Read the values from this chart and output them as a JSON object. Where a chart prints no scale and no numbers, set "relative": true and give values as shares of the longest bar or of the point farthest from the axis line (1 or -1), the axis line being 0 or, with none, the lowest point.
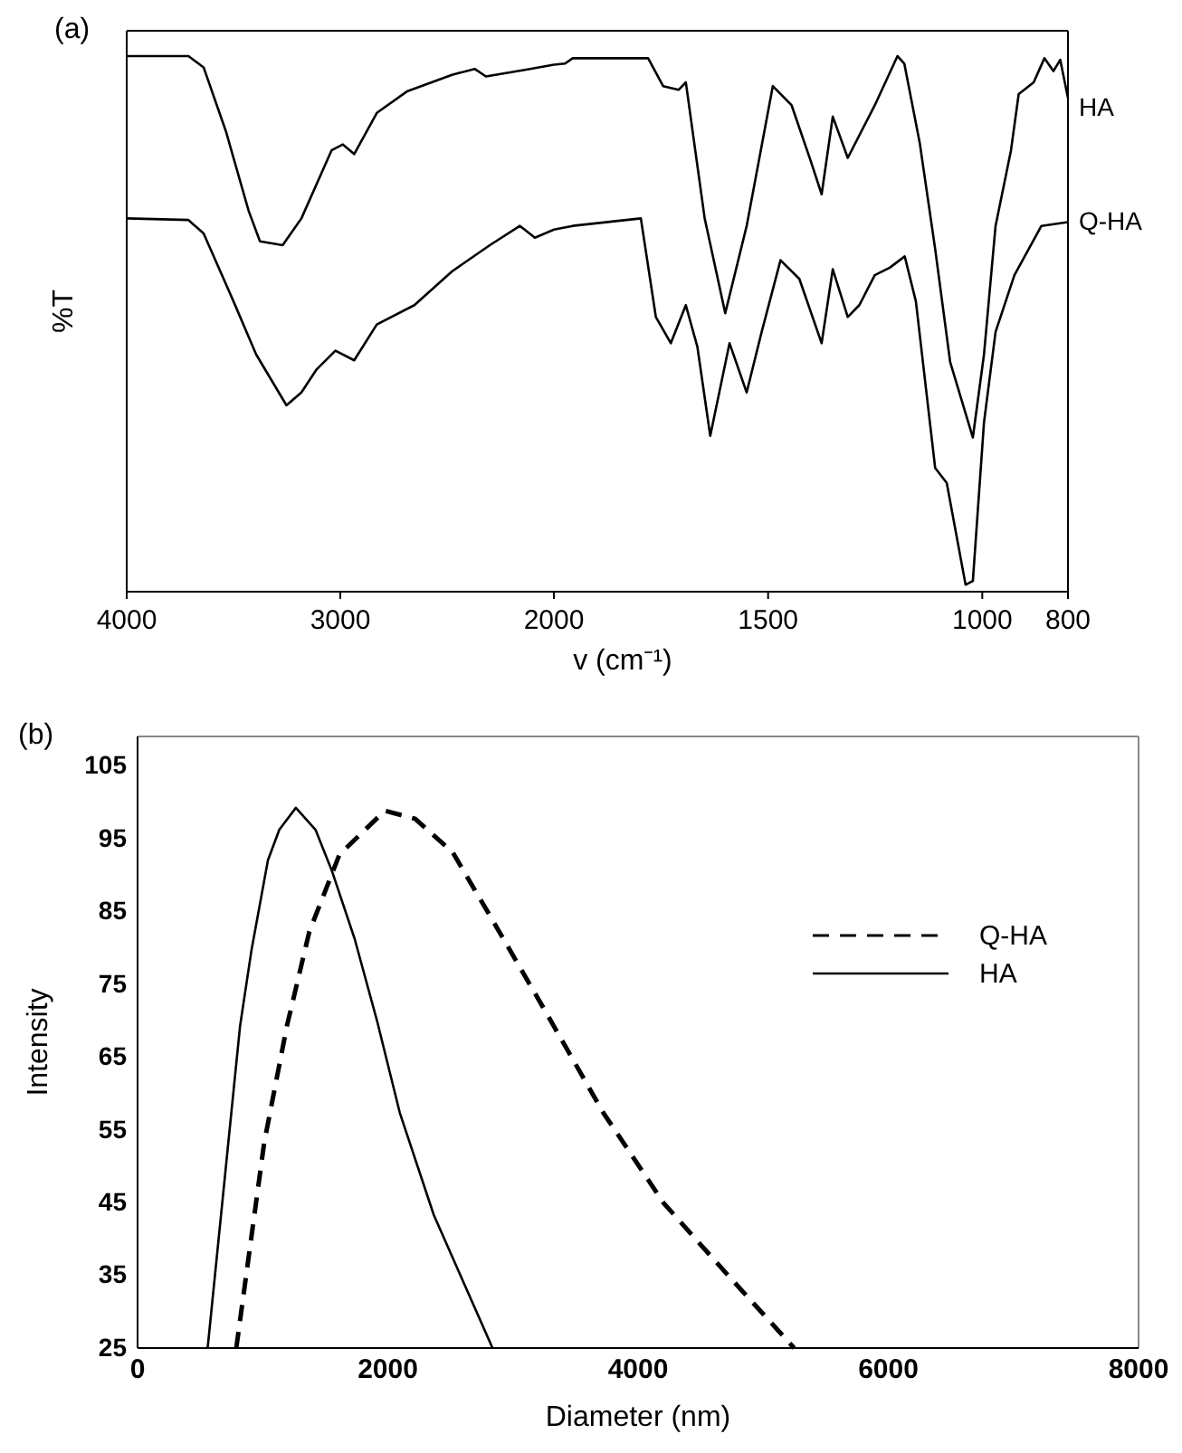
{
  "chart_data": [
    {
      "type": "line",
      "relative": true,
      "ylabel": "%T",
      "annotations": [
        "(a)"
      ],
      "xlim": [
        4000,
        2000
      ],
      "xticks": [
        4000,
        3000,
        {
          "value": 2000,
          "label": null
        }
      ],
      "series": [
        {
          "color": "#000000",
          "x": [
            4000,
            3711,
            3640,
            3535,
            3429,
            3376,
            3270,
            3182,
            3041,
            2988,
            2935,
            2829,
            2688,
            2477,
            2371,
            2318,
            2124,
            2000
          ],
          "values": [
            1.0,
            1.0,
            0.979,
            0.859,
            0.711,
            0.654,
            0.647,
            0.697,
            0.824,
            0.835,
            0.817,
            0.894,
            0.934,
            0.965,
            0.976,
            0.962,
            0.975,
            0.984
          ]
        },
        {
          "color": "#000000",
          "x": [
            4000,
            3711,
            3640,
            3500,
            3394,
            3252,
            3182,
            3111,
            3023,
            2935,
            2829,
            2653,
            2477,
            2300,
            2159,
            2089,
            2000
          ],
          "values": [
            0.697,
            0.694,
            0.669,
            0.542,
            0.443,
            0.348,
            0.372,
            0.415,
            0.45,
            0.432,
            0.499,
            0.535,
            0.598,
            0.647,
            0.683,
            0.661,
            0.676
          ]
        }
      ]
    },
    {
      "type": "line",
      "relative": true,
      "xlabel": "v (cm⁻¹)",
      "xlim": [
        2000,
        800
      ],
      "xticks": [
        2000,
        1500,
        1000,
        800
      ],
      "series": [
        {
          "name": "HA",
          "color": "#000000",
          "x": [
            2000,
            1974,
            1956,
            1780,
            1745,
            1709,
            1692,
            1648,
            1600,
            1550,
            1489,
            1445,
            1400,
            1375,
            1349,
            1314,
            1251,
            1198,
            1182,
            1146,
            1110,
            1075,
            1022,
            996,
            969,
            933,
            915,
            880,
            855,
            834,
            818,
            800
          ],
          "values": [
            0.984,
            0.986,
            0.996,
            0.996,
            0.944,
            0.937,
            0.951,
            0.697,
            0.52,
            0.683,
            0.944,
            0.908,
            0.803,
            0.742,
            0.887,
            0.81,
            0.908,
            1.0,
            0.986,
            0.838,
            0.64,
            0.429,
            0.288,
            0.443,
            0.683,
            0.824,
            0.929,
            0.951,
            0.996,
            0.972,
            0.993,
            0.922
          ]
        },
        {
          "name": "Q-HA",
          "color": "#000000",
          "x": [
            2000,
            1956,
            1797,
            1762,
            1727,
            1692,
            1665,
            1635,
            1590,
            1550,
            1515,
            1471,
            1427,
            1375,
            1349,
            1314,
            1287,
            1251,
            1216,
            1181,
            1155,
            1110,
            1083,
            1039,
            1022,
            996,
            969,
            925,
            862,
            800
          ],
          "values": [
            0.676,
            0.683,
            0.697,
            0.513,
            0.464,
            0.535,
            0.457,
            0.291,
            0.464,
            0.372,
            0.485,
            0.619,
            0.584,
            0.464,
            0.602,
            0.513,
            0.535,
            0.591,
            0.605,
            0.626,
            0.542,
            0.231,
            0.203,
            0.013,
            0.02,
            0.316,
            0.485,
            0.591,
            0.683,
            0.69
          ]
        }
      ]
    },
    {
      "type": "line",
      "xlabel": "Diameter (nm)",
      "ylabel": "Intensity",
      "annotations": [
        "(b)"
      ],
      "xlim": [
        0,
        8000
      ],
      "xticks": [
        0,
        2000,
        4000,
        6000,
        8000
      ],
      "ylim": [
        25,
        109
      ],
      "yticks": [
        25,
        35,
        45,
        55,
        65,
        75,
        85,
        95,
        105
      ],
      "legend": "top right",
      "series": [
        {
          "name": "Q-HA",
          "color": "#000000",
          "line_style": "dashed",
          "x": [
            789,
            1012,
            1193,
            1373,
            1614,
            1976,
            2217,
            2518,
            2819,
            3241,
            3723,
            4205,
            4687,
            5247
          ],
          "values": [
            25,
            53.2,
            69.2,
            82.2,
            92.8,
            98.8,
            97.7,
            93.1,
            84.3,
            71.8,
            57.3,
            44.9,
            35.6,
            25
          ]
        },
        {
          "name": "HA",
          "color": "#000000",
          "line_style": "solid",
          "x": [
            560,
            819,
            910,
            1042,
            1133,
            1265,
            1422,
            1554,
            1735,
            1916,
            2096,
            2367,
            2837
          ],
          "values": [
            25,
            69.2,
            79.6,
            92,
            96.2,
            99.2,
            96.2,
            90.5,
            81.2,
            69.8,
            57.3,
            43.3,
            25
          ]
        }
      ]
    }
  ]
}
